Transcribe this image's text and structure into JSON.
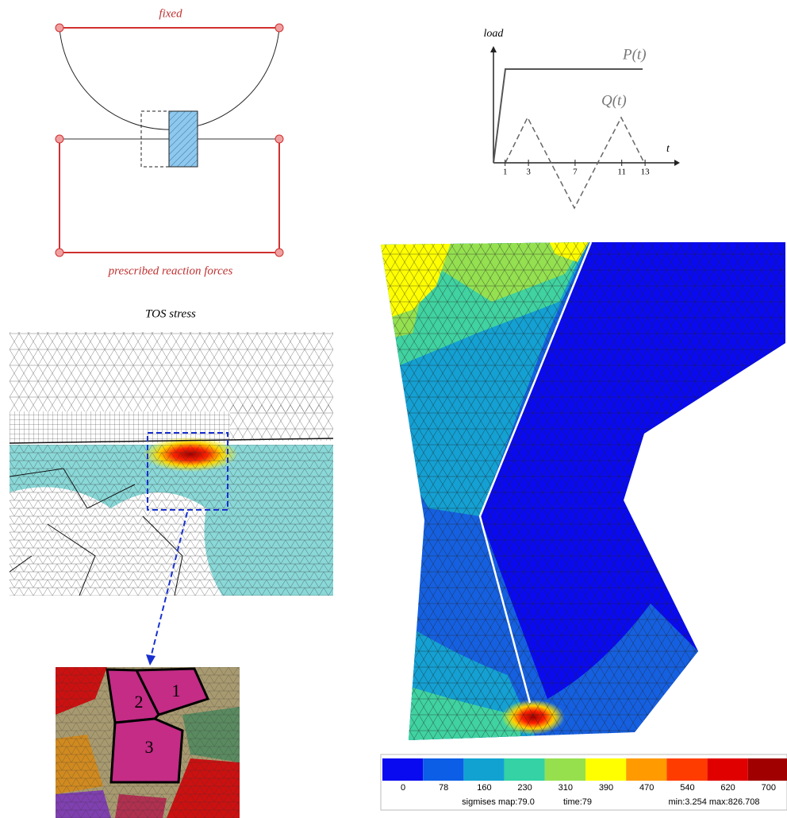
{
  "boundary_diagram": {
    "top_label": "fixed",
    "bottom_label": "prescribed reaction forces"
  },
  "load_plot": {
    "y_label": "load",
    "x_label": "t",
    "curves": [
      "P(t)",
      "Q(t)"
    ],
    "ticks": [
      1,
      3,
      7,
      11,
      13
    ]
  },
  "mesh_panel": {
    "title": "TOS stress"
  },
  "grain_inset": {
    "labels": [
      "1",
      "2",
      "3"
    ]
  },
  "contour_plot": {
    "colorbar": {
      "ticks": [
        0,
        78,
        160,
        230,
        310,
        390,
        470,
        540,
        620,
        700
      ],
      "colors": [
        "#0a0af0",
        "#0c5ee6",
        "#12a2d2",
        "#34d2a4",
        "#96e04e",
        "#ffff00",
        "#ff9a00",
        "#ff3c00",
        "#e00000",
        "#a00000"
      ]
    },
    "footer": [
      "sigmises map:79.0",
      "time:79",
      "min:3.254 max:826.708"
    ]
  }
}
